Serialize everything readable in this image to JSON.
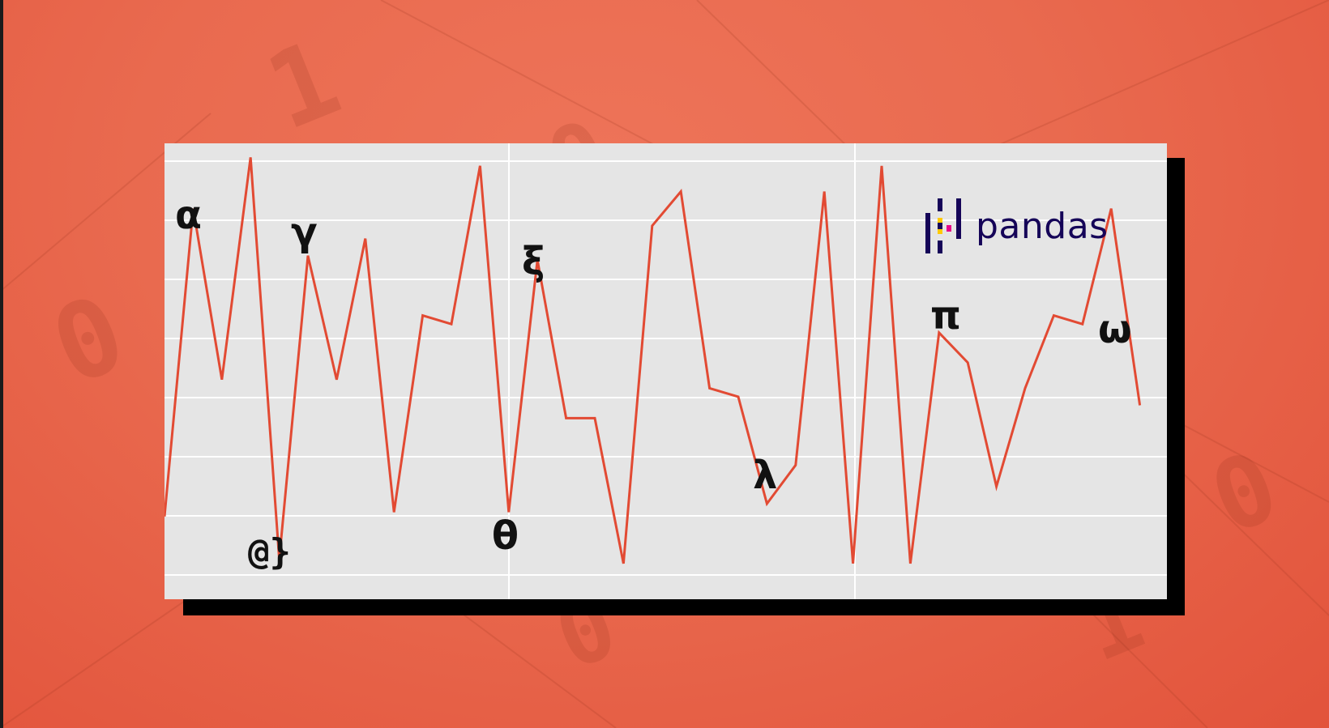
{
  "logo": {
    "text": "pandas"
  },
  "decor_digits": [
    "1",
    "0",
    "0",
    "0",
    "1",
    "0"
  ],
  "labels": [
    "α",
    "γ",
    "@}",
    "ξ",
    "θ",
    "λ",
    "π",
    "ω"
  ],
  "colors": {
    "background": "#e96a4f",
    "card": "#e5e5e5",
    "grid": "#ffffff",
    "line": "#e24a33",
    "shadow": "#000000",
    "logo_text": "#150458",
    "logo_bars": "#150458",
    "logo_yellow": "#ffca00",
    "logo_pink": "#e70488"
  },
  "chart_data": {
    "type": "line",
    "series": [
      {
        "values": [
          15,
          87,
          47,
          99,
          5,
          76,
          47,
          80,
          16,
          62,
          60,
          97,
          16,
          75,
          38,
          38,
          4,
          83,
          91,
          45,
          43,
          18,
          27,
          91,
          4,
          97,
          4,
          58,
          51,
          22,
          45,
          62,
          60,
          87,
          41
        ]
      }
    ],
    "grid": true
  }
}
